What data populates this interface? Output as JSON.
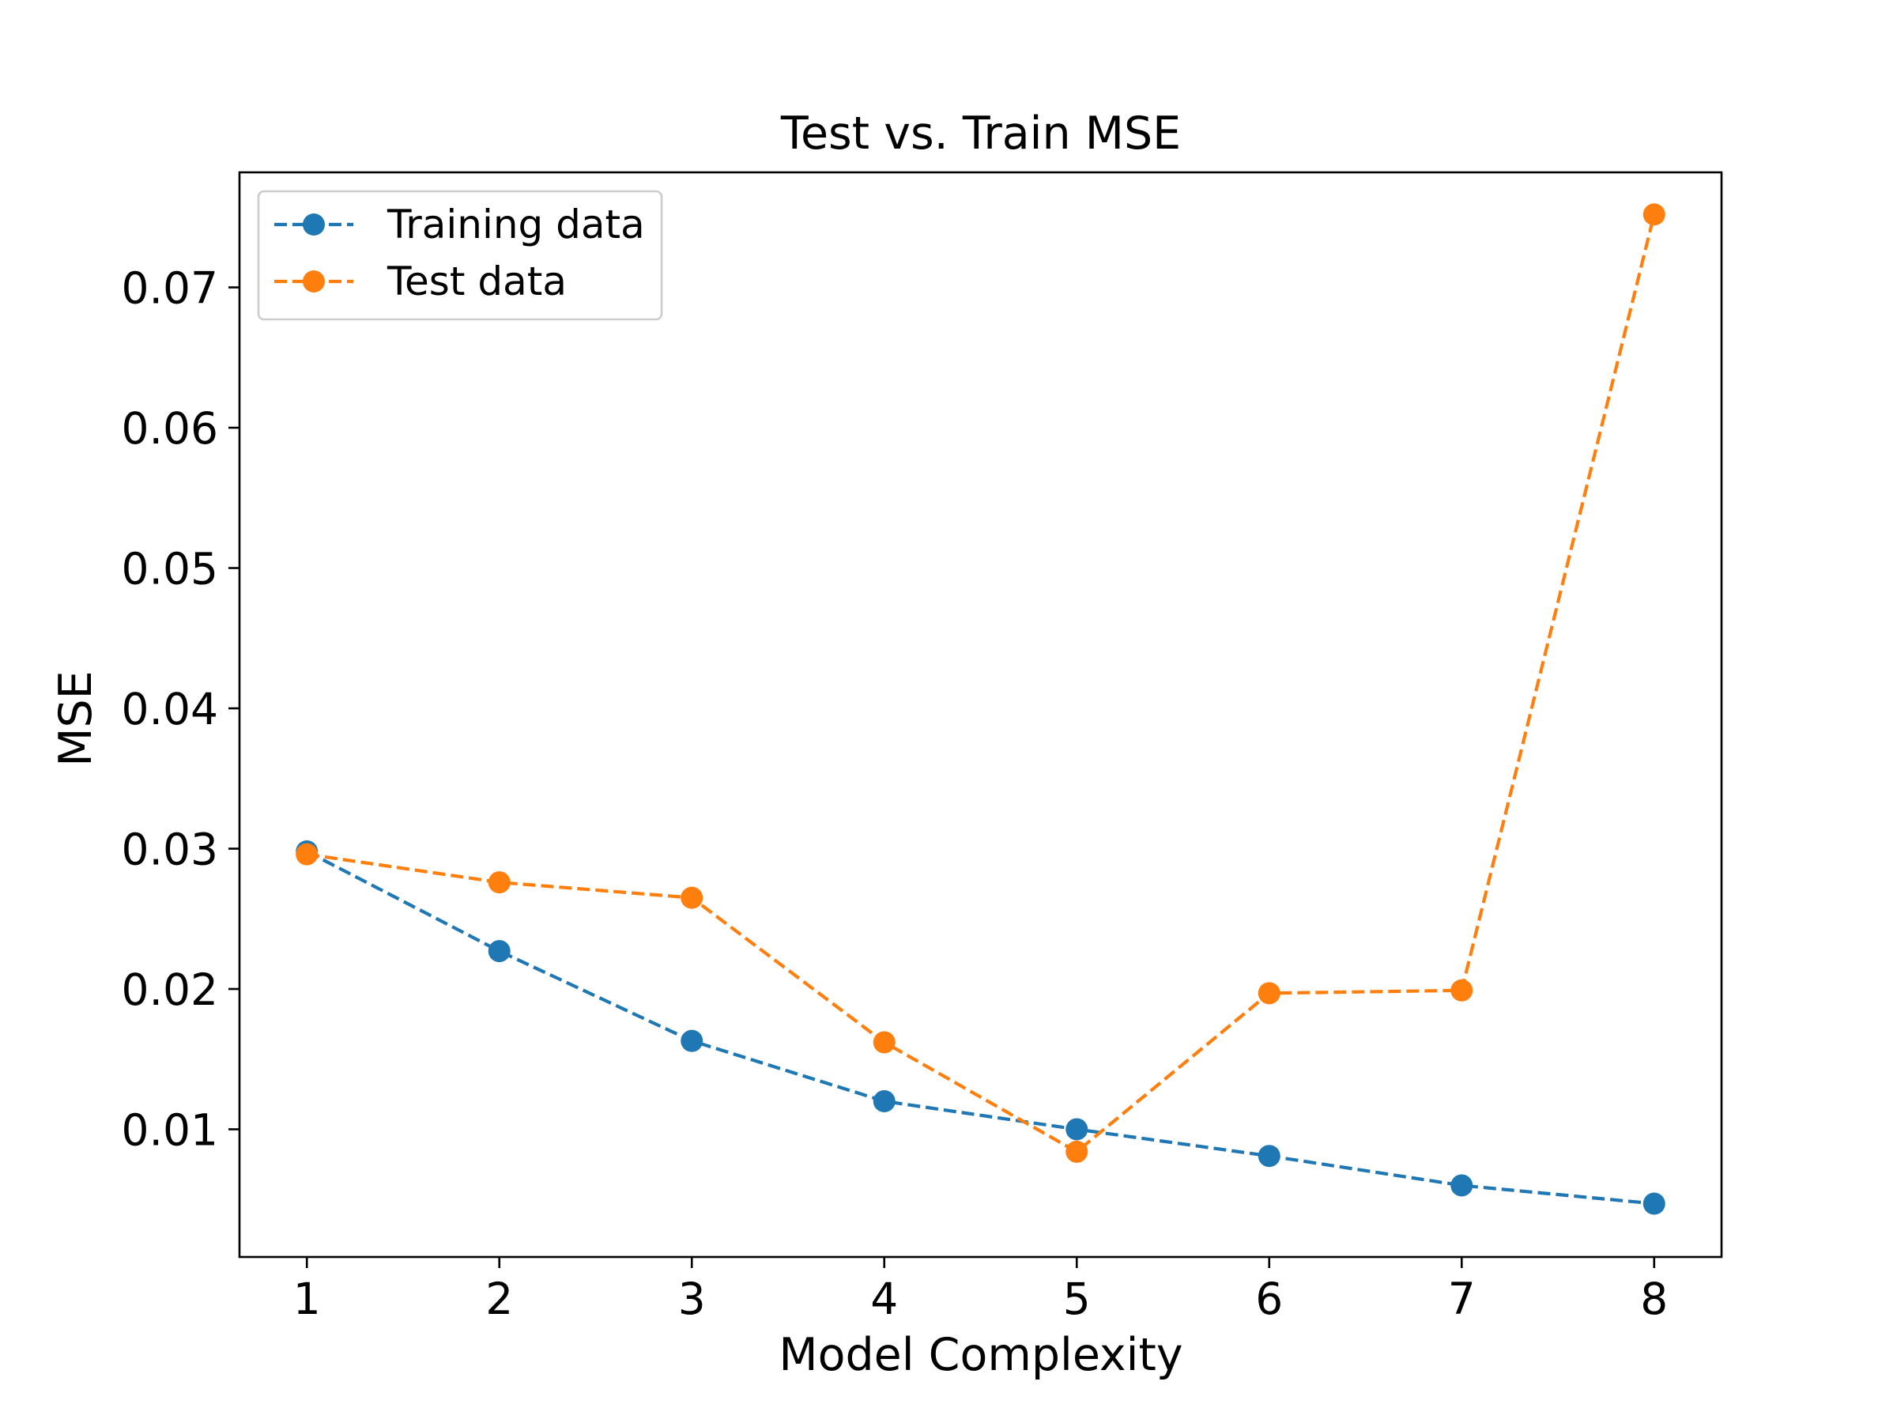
{
  "chart_data": {
    "type": "line",
    "title": "Test vs. Train MSE",
    "xlabel": "Model Complexity",
    "ylabel": "MSE",
    "x": [
      1,
      2,
      3,
      4,
      5,
      6,
      7,
      8
    ],
    "x_ticks": [
      "1",
      "2",
      "3",
      "4",
      "5",
      "6",
      "7",
      "8"
    ],
    "xlim": [
      0.65,
      8.35
    ],
    "ylim": [
      0.0009,
      0.0782
    ],
    "y_ticks": [
      0.01,
      0.02,
      0.03,
      0.04,
      0.05,
      0.06,
      0.07
    ],
    "y_tick_labels": [
      "0.01",
      "0.02",
      "0.03",
      "0.04",
      "0.05",
      "0.06",
      "0.07"
    ],
    "grid": false,
    "legend_position": "upper-left",
    "line_style": "dashed",
    "marker": "circle",
    "series": [
      {
        "name": "Training data",
        "color": "#1f77b4",
        "values": [
          0.0298,
          0.0227,
          0.0163,
          0.012,
          0.01,
          0.0081,
          0.006,
          0.0047
        ]
      },
      {
        "name": "Test data",
        "color": "#ff7f0e",
        "values": [
          0.0296,
          0.0276,
          0.0265,
          0.0162,
          0.0084,
          0.0197,
          0.0199,
          0.0752
        ]
      }
    ]
  }
}
